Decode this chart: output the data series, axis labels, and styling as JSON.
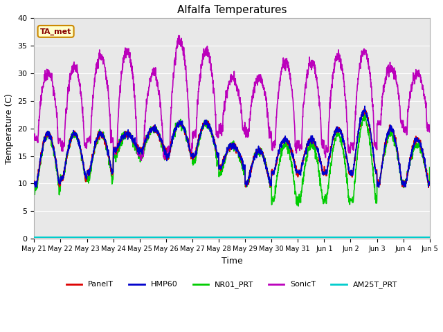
{
  "title": "Alfalfa Temperatures",
  "xlabel": "Time",
  "ylabel": "Temperature (C)",
  "ylim": [
    0,
    40
  ],
  "annotation_text": "TA_met",
  "annotation_bg": "#ffffcc",
  "annotation_border": "#cc8800",
  "annotation_text_color": "#880000",
  "plot_bg": "#e8e8e8",
  "series": {
    "PanelT": {
      "color": "#dd0000",
      "lw": 1.2
    },
    "HMP60": {
      "color": "#0000cc",
      "lw": 1.2
    },
    "NR01_PRT": {
      "color": "#00cc00",
      "lw": 1.2
    },
    "SonicT": {
      "color": "#bb00bb",
      "lw": 1.2
    },
    "AM25T_PRT": {
      "color": "#00cccc",
      "lw": 1.5
    }
  },
  "x_tick_labels": [
    "May 21",
    "May 22",
    "May 23",
    "May 24",
    "May 25",
    "May 26",
    "May 27",
    "May 28",
    "May 29",
    "May 30",
    "May 31",
    "Jun 1",
    "Jun 2",
    "Jun 3",
    "Jun 4",
    "Jun 5"
  ],
  "n_days": 15,
  "ppd": 144
}
